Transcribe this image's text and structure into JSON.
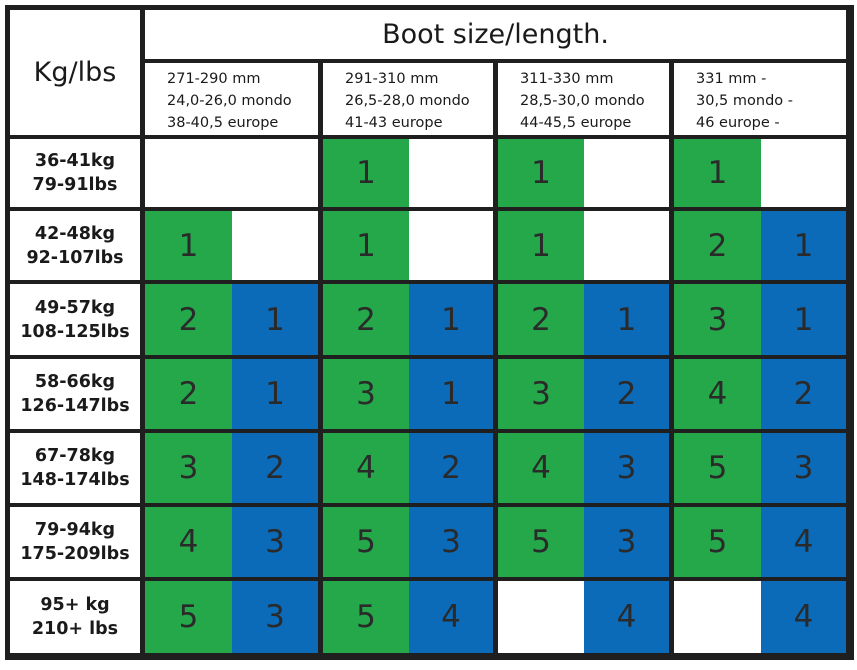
{
  "corner_label": "Kg/lbs",
  "title": "Boot size/length.",
  "size_columns": [
    {
      "mm": "271-290 mm",
      "mondo": "24,0-26,0 mondo",
      "europe": "38-40,5 europe"
    },
    {
      "mm": "291-310 mm",
      "mondo": "26,5-28,0 mondo",
      "europe": "41-43 europe"
    },
    {
      "mm": "311-330 mm",
      "mondo": "28,5-30,0 mondo",
      "europe": "44-45,5 europe"
    },
    {
      "mm": "331 mm -",
      "mondo": "30,5 mondo -",
      "europe": "46 europe -"
    }
  ],
  "rows": [
    {
      "kg": "36-41kg",
      "lbs": "79-91lbs",
      "cells": [
        [
          "",
          ""
        ],
        [
          "1",
          ""
        ],
        [
          "1",
          ""
        ],
        [
          "1",
          ""
        ]
      ]
    },
    {
      "kg": "42-48kg",
      "lbs": "92-107lbs",
      "cells": [
        [
          "1",
          ""
        ],
        [
          "1",
          ""
        ],
        [
          "1",
          ""
        ],
        [
          "2",
          "1"
        ]
      ]
    },
    {
      "kg": "49-57kg",
      "lbs": "108-125lbs",
      "cells": [
        [
          "2",
          "1"
        ],
        [
          "2",
          "1"
        ],
        [
          "2",
          "1"
        ],
        [
          "3",
          "1"
        ]
      ]
    },
    {
      "kg": "58-66kg",
      "lbs": "126-147lbs",
      "cells": [
        [
          "2",
          "1"
        ],
        [
          "3",
          "1"
        ],
        [
          "3",
          "2"
        ],
        [
          "4",
          "2"
        ]
      ]
    },
    {
      "kg": "67-78kg",
      "lbs": "148-174lbs",
      "cells": [
        [
          "3",
          "2"
        ],
        [
          "4",
          "2"
        ],
        [
          "4",
          "3"
        ],
        [
          "5",
          "3"
        ]
      ]
    },
    {
      "kg": "79-94kg",
      "lbs": "175-209lbs",
      "cells": [
        [
          "4",
          "3"
        ],
        [
          "5",
          "3"
        ],
        [
          "5",
          "3"
        ],
        [
          "5",
          "4"
        ]
      ]
    },
    {
      "kg": "95+ kg",
      "lbs": "210+ lbs",
      "cells": [
        [
          "5",
          "3"
        ],
        [
          "5",
          "4"
        ],
        [
          "",
          "4"
        ],
        [
          "",
          "4"
        ]
      ]
    }
  ],
  "colors": {
    "green": "#25a84a",
    "blue": "#0b6bb8",
    "border": "#1f1f1f"
  }
}
